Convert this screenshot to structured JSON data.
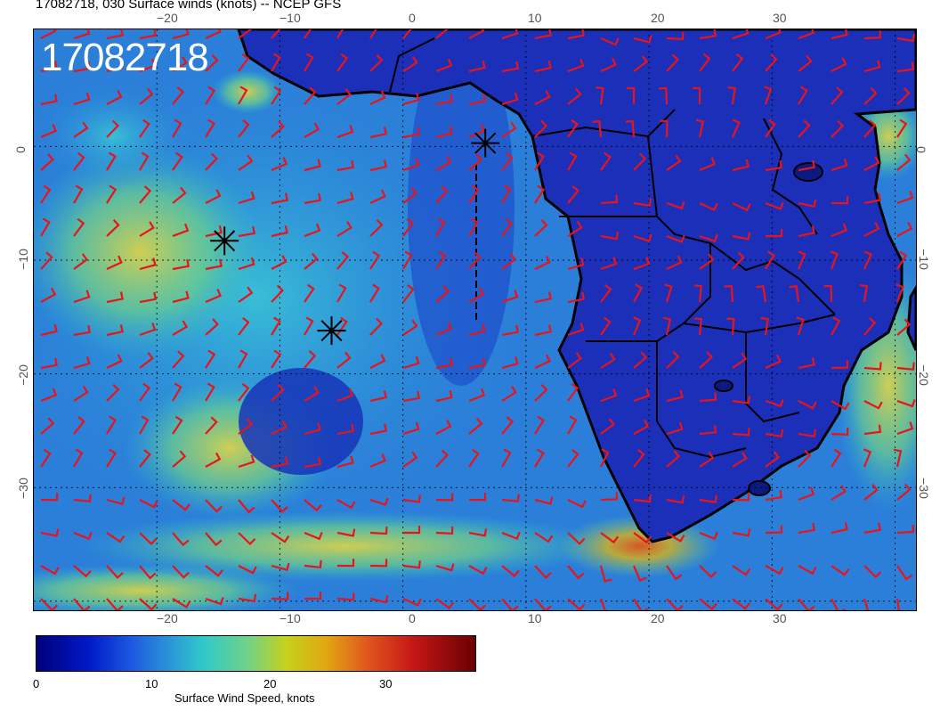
{
  "title": "17082718, 030 Surface winds (knots) -- NCEP GFS",
  "timestamp_overlay": "17082718",
  "map": {
    "region": "South Atlantic and southern Africa",
    "lon_range": [
      -30,
      40
    ],
    "lat_range": [
      -40,
      10
    ],
    "lon_tick_labels": [
      "−20",
      "−10",
      "0",
      "10",
      "20",
      "30"
    ],
    "lat_tick_labels": [
      "0",
      "−10",
      "−20",
      "−30"
    ],
    "barb_color": "#e8141b",
    "coast_color": "#000000",
    "markers": [
      {
        "label": "asterisk",
        "lon": 6.7,
        "lat": 0.3
      },
      {
        "label": "asterisk",
        "lon": -14.5,
        "lat": -8.3
      },
      {
        "label": "asterisk",
        "lon": -5.8,
        "lat": -16.2
      }
    ]
  },
  "colorbar": {
    "tick_labels": [
      "0",
      "10",
      "20",
      "30"
    ],
    "label": "Surface Wind Speed, knots",
    "range": [
      0,
      37
    ]
  }
}
